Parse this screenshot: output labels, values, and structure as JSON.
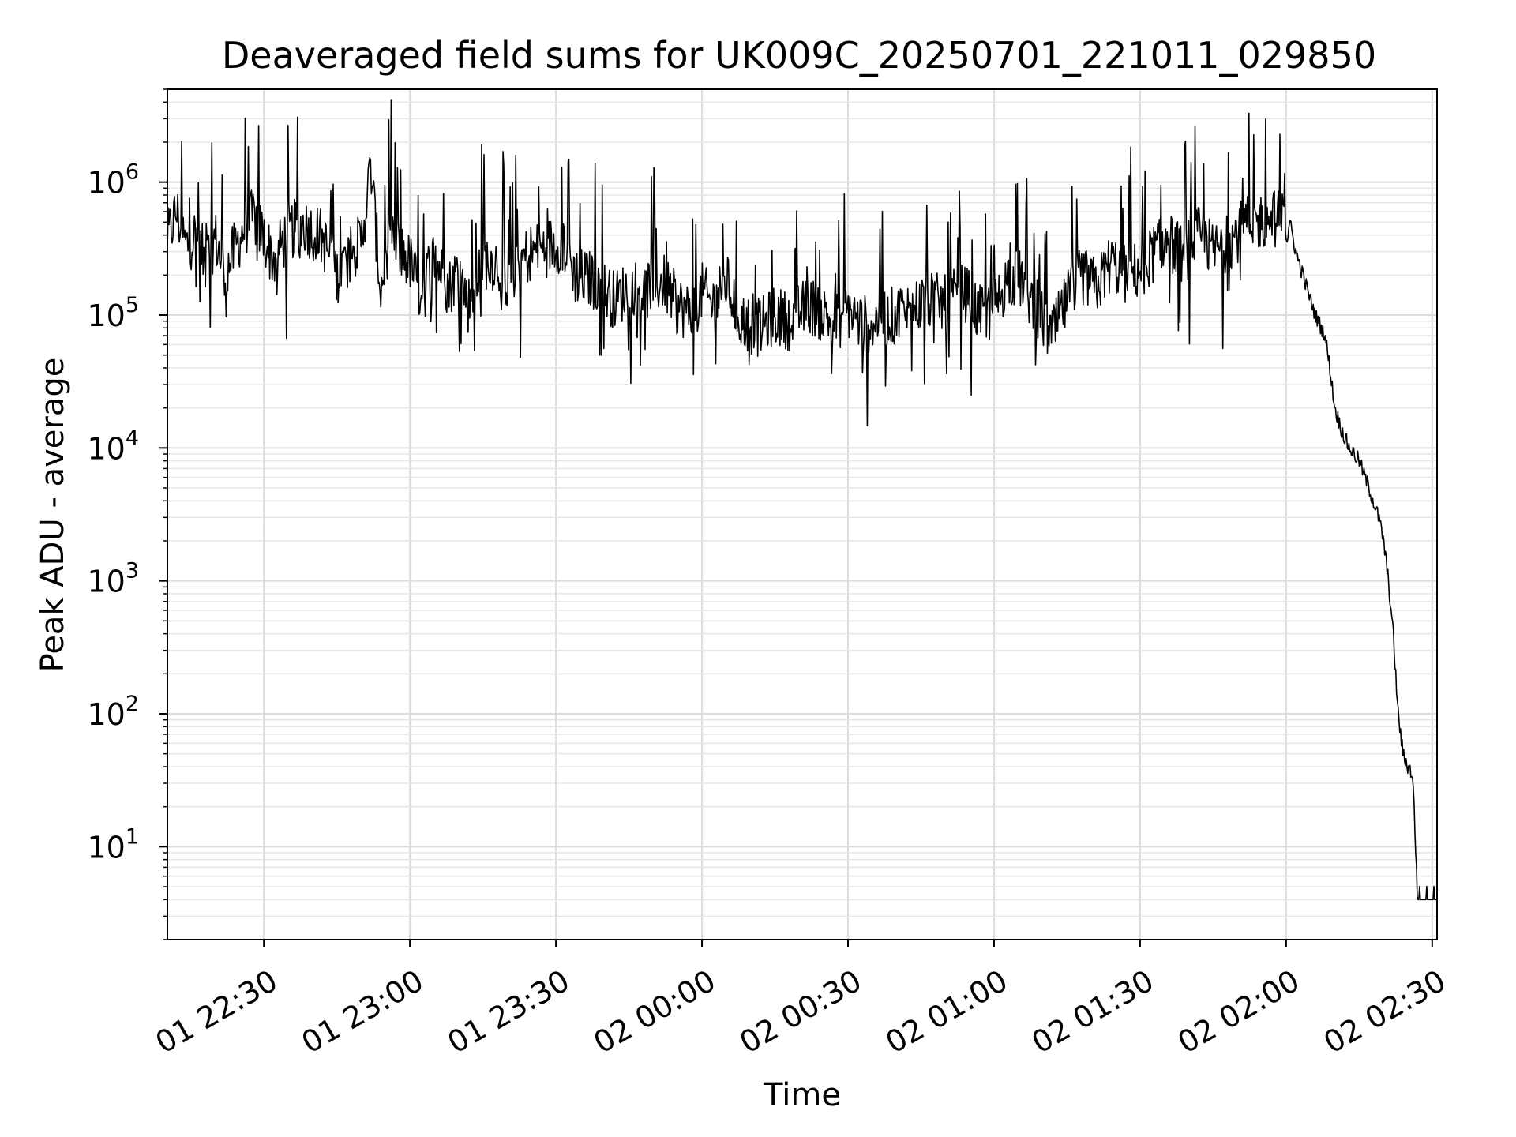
{
  "chart_data": {
    "type": "line",
    "title": "Deaveraged field sums for UK009C_20250701_221011_029850",
    "xlabel": "Time",
    "ylabel": "Peak ADU - average",
    "yscale": "log",
    "xlim": [
      "2025-07-01 22:10:11",
      "2025-07-02 02:31:00"
    ],
    "ylim": [
      2,
      5000000
    ],
    "grid": "on",
    "legend": "none",
    "x_ticks": [
      {
        "t": "2025-07-01 22:30",
        "label": "01 22:30"
      },
      {
        "t": "2025-07-01 23:00",
        "label": "01 23:00"
      },
      {
        "t": "2025-07-01 23:30",
        "label": "01 23:30"
      },
      {
        "t": "2025-07-02 00:00",
        "label": "02 00:00"
      },
      {
        "t": "2025-07-02 00:30",
        "label": "02 00:30"
      },
      {
        "t": "2025-07-02 01:00",
        "label": "02 01:00"
      },
      {
        "t": "2025-07-02 01:30",
        "label": "02 01:30"
      },
      {
        "t": "2025-07-02 02:00",
        "label": "02 02:00"
      },
      {
        "t": "2025-07-02 02:30",
        "label": "02 02:30"
      }
    ],
    "y_ticks": [
      {
        "value": 10,
        "base": "10",
        "exp": "1"
      },
      {
        "value": 100,
        "base": "10",
        "exp": "2"
      },
      {
        "value": 1000,
        "base": "10",
        "exp": "3"
      },
      {
        "value": 10000,
        "base": "10",
        "exp": "4"
      },
      {
        "value": 100000,
        "base": "10",
        "exp": "5"
      },
      {
        "value": 1000000,
        "base": "10",
        "exp": "6"
      }
    ],
    "series": [
      {
        "color": "#000000",
        "points": [
          [
            "2025-07-01 22:10",
            350000
          ],
          [
            "2025-07-01 22:12",
            600000
          ],
          [
            "2025-07-01 22:14",
            330000
          ],
          [
            "2025-07-01 22:16",
            400000
          ],
          [
            "2025-07-01 22:18",
            250000
          ],
          [
            "2025-07-01 22:20",
            380000
          ],
          [
            "2025-07-01 22:22",
            200000
          ],
          [
            "2025-07-01 22:24",
            310000
          ],
          [
            "2025-07-01 22:26",
            450000
          ],
          [
            "2025-07-01 22:28",
            550000
          ],
          [
            "2025-07-01 22:30",
            380000
          ],
          [
            "2025-07-01 22:32",
            260000
          ],
          [
            "2025-07-01 22:35",
            420000
          ],
          [
            "2025-07-01 22:38",
            480000
          ],
          [
            "2025-07-01 22:42",
            380000
          ],
          [
            "2025-07-01 22:45",
            200000
          ],
          [
            "2025-07-01 22:48",
            300000
          ],
          [
            "2025-07-01 22:50",
            350000
          ],
          [
            "2025-07-01 22:52",
            1300000
          ],
          [
            "2025-07-01 22:54",
            150000
          ],
          [
            "2025-07-01 22:56",
            450000
          ],
          [
            "2025-07-01 22:58",
            300000
          ],
          [
            "2025-07-01 23:00",
            250000
          ],
          [
            "2025-07-01 23:02",
            150000
          ],
          [
            "2025-07-01 23:05",
            280000
          ],
          [
            "2025-07-01 23:08",
            160000
          ],
          [
            "2025-07-01 23:10",
            220000
          ],
          [
            "2025-07-01 23:12",
            120000
          ],
          [
            "2025-07-01 23:15",
            260000
          ],
          [
            "2025-07-01 23:18",
            250000
          ],
          [
            "2025-07-01 23:20",
            180000
          ],
          [
            "2025-07-01 23:22",
            240000
          ],
          [
            "2025-07-01 23:25",
            300000
          ],
          [
            "2025-07-01 23:28",
            320000
          ],
          [
            "2025-07-01 23:30",
            350000
          ],
          [
            "2025-07-01 23:32",
            330000
          ],
          [
            "2025-07-01 23:34",
            200000
          ],
          [
            "2025-07-01 23:38",
            180000
          ],
          [
            "2025-07-01 23:42",
            130000
          ],
          [
            "2025-07-01 23:45",
            160000
          ],
          [
            "2025-07-01 23:48",
            150000
          ],
          [
            "2025-07-01 23:52",
            180000
          ],
          [
            "2025-07-01 23:55",
            120000
          ],
          [
            "2025-07-01 23:58",
            100000
          ],
          [
            "2025-07-02 00:00",
            150000
          ],
          [
            "2025-07-02 00:02",
            120000
          ],
          [
            "2025-07-02 00:05",
            180000
          ],
          [
            "2025-07-02 00:08",
            90000
          ],
          [
            "2025-07-02 00:12",
            80000
          ],
          [
            "2025-07-02 00:15",
            100000
          ],
          [
            "2025-07-02 00:18",
            90000
          ],
          [
            "2025-07-02 00:22",
            120000
          ],
          [
            "2025-07-02 00:25",
            100000
          ],
          [
            "2025-07-02 00:28",
            90000
          ],
          [
            "2025-07-02 00:30",
            110000
          ],
          [
            "2025-07-02 00:33",
            85000
          ],
          [
            "2025-07-02 00:36",
            90000
          ],
          [
            "2025-07-02 00:40",
            100000
          ],
          [
            "2025-07-02 00:43",
            110000
          ],
          [
            "2025-07-02 00:46",
            130000
          ],
          [
            "2025-07-02 00:50",
            120000
          ],
          [
            "2025-07-02 00:54",
            150000
          ],
          [
            "2025-07-02 00:57",
            100000
          ],
          [
            "2025-07-02 01:00",
            110000
          ],
          [
            "2025-07-02 01:03",
            200000
          ],
          [
            "2025-07-02 01:06",
            180000
          ],
          [
            "2025-07-02 01:08",
            120000
          ],
          [
            "2025-07-02 01:10",
            90000
          ],
          [
            "2025-07-02 01:12",
            70000
          ],
          [
            "2025-07-02 01:15",
            130000
          ],
          [
            "2025-07-02 01:18",
            200000
          ],
          [
            "2025-07-02 01:21",
            160000
          ],
          [
            "2025-07-02 01:24",
            250000
          ],
          [
            "2025-07-02 01:27",
            200000
          ],
          [
            "2025-07-02 01:30",
            220000
          ],
          [
            "2025-07-02 01:33",
            300000
          ],
          [
            "2025-07-02 01:36",
            350000
          ],
          [
            "2025-07-02 01:39",
            280000
          ],
          [
            "2025-07-02 01:42",
            400000
          ],
          [
            "2025-07-02 01:45",
            300000
          ],
          [
            "2025-07-02 01:48",
            350000
          ],
          [
            "2025-07-02 01:51",
            450000
          ],
          [
            "2025-07-02 01:54",
            500000
          ],
          [
            "2025-07-02 01:57",
            550000
          ],
          [
            "2025-07-02 02:00",
            500000
          ],
          [
            "2025-07-02 02:01",
            450000
          ],
          [
            "2025-07-02 02:02",
            300000
          ],
          [
            "2025-07-02 02:04",
            170000
          ],
          [
            "2025-07-02 02:06",
            100000
          ],
          [
            "2025-07-02 02:08",
            70000
          ],
          [
            "2025-07-02 02:09",
            40000
          ],
          [
            "2025-07-02 02:10",
            20000
          ],
          [
            "2025-07-02 02:11",
            15000
          ],
          [
            "2025-07-02 02:12",
            12000
          ],
          [
            "2025-07-02 02:13",
            10000
          ],
          [
            "2025-07-02 02:15",
            8000
          ],
          [
            "2025-07-02 02:17",
            5000
          ],
          [
            "2025-07-02 02:19",
            3000
          ],
          [
            "2025-07-02 02:20",
            2000
          ],
          [
            "2025-07-02 02:21",
            1000
          ],
          [
            "2025-07-02 02:22",
            400
          ],
          [
            "2025-07-02 02:23",
            100
          ],
          [
            "2025-07-02 02:24",
            50
          ],
          [
            "2025-07-02 02:25",
            40
          ],
          [
            "2025-07-02 02:26",
            35
          ],
          [
            "2025-07-02 02:27",
            4
          ],
          [
            "2025-07-02 02:28",
            4
          ],
          [
            "2025-07-02 02:29",
            4
          ],
          [
            "2025-07-02 02:30",
            4
          ],
          [
            "2025-07-02 02:31",
            4
          ]
        ]
      }
    ]
  }
}
